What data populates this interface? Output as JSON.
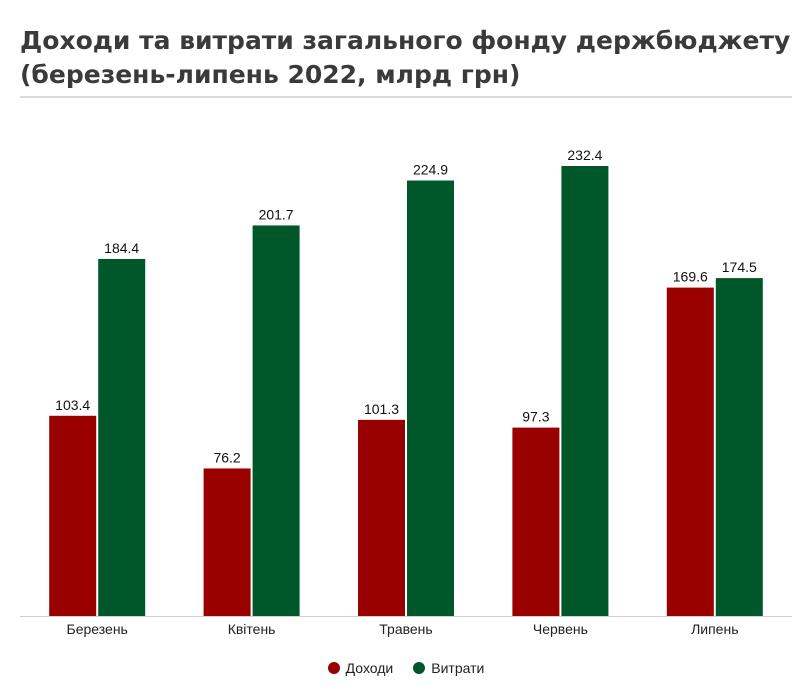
{
  "title": "Доходи та витрати загального фонду держбюджету (березень-липень 2022, млрд грн)",
  "chart_data": {
    "type": "bar",
    "title": "Доходи та витрати загального фонду держбюджету (березень-липень 2022, млрд грн)",
    "categories": [
      "Березень",
      "Квітень",
      "Травень",
      "Червень",
      "Липень"
    ],
    "series": [
      {
        "name": "Доходи",
        "color": "#990000",
        "values": [
          103.4,
          76.2,
          101.3,
          97.3,
          169.6
        ]
      },
      {
        "name": "Витрати",
        "color": "#00572a",
        "values": [
          184.4,
          201.7,
          224.9,
          232.4,
          174.5
        ]
      }
    ],
    "value_labels": [
      [
        "103.4",
        "76.2",
        "101.3",
        "97.3",
        "169.6"
      ],
      [
        "184.4",
        "201.7",
        "224.9",
        "232.4",
        "174.5"
      ]
    ],
    "xlabel": "",
    "ylabel": "",
    "ylim": [
      0,
      250
    ],
    "grid": false,
    "legend": "bottom-center"
  }
}
